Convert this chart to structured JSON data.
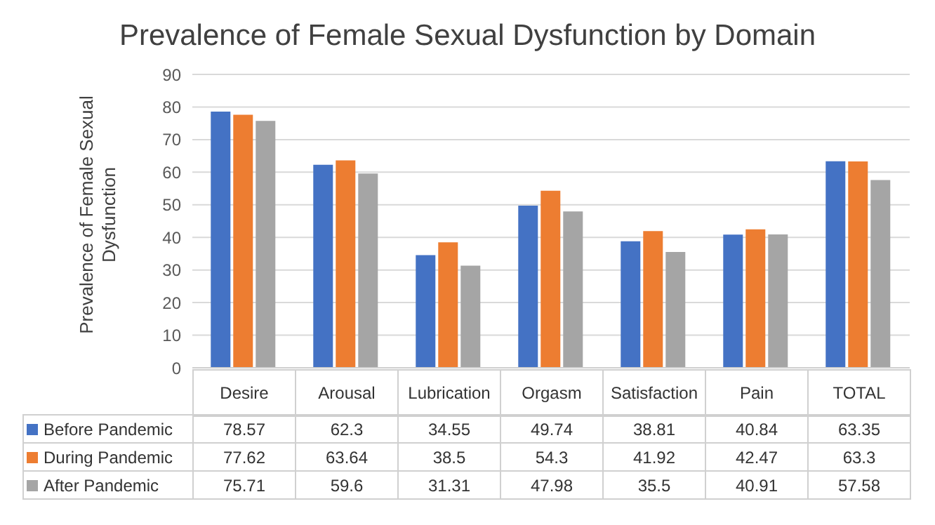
{
  "chart_data": {
    "type": "bar",
    "title": "Prevalence of Female Sexual Dysfunction by Domain",
    "ylabel": "Prevalence of Female Sexual Dysfunction",
    "categories": [
      "Desire",
      "Arousal",
      "Lubrication",
      "Orgasm",
      "Satisfaction",
      "Pain",
      "TOTAL"
    ],
    "series": [
      {
        "name": "Before Pandemic",
        "color": "#4472c4",
        "values": [
          78.57,
          62.3,
          34.55,
          49.74,
          38.81,
          40.84,
          63.35
        ]
      },
      {
        "name": "During Pandemic",
        "color": "#ed7d31",
        "values": [
          77.62,
          63.64,
          38.5,
          54.3,
          41.92,
          42.47,
          63.3
        ]
      },
      {
        "name": "After Pandemic",
        "color": "#a5a5a5",
        "values": [
          75.71,
          59.6,
          31.31,
          47.98,
          35.5,
          40.91,
          57.58
        ]
      }
    ],
    "ylim": [
      0,
      90
    ],
    "yticks": [
      0,
      10,
      20,
      30,
      40,
      50,
      60,
      70,
      80,
      90
    ],
    "grid": "y",
    "legend": "bottom",
    "data_labels": true
  }
}
